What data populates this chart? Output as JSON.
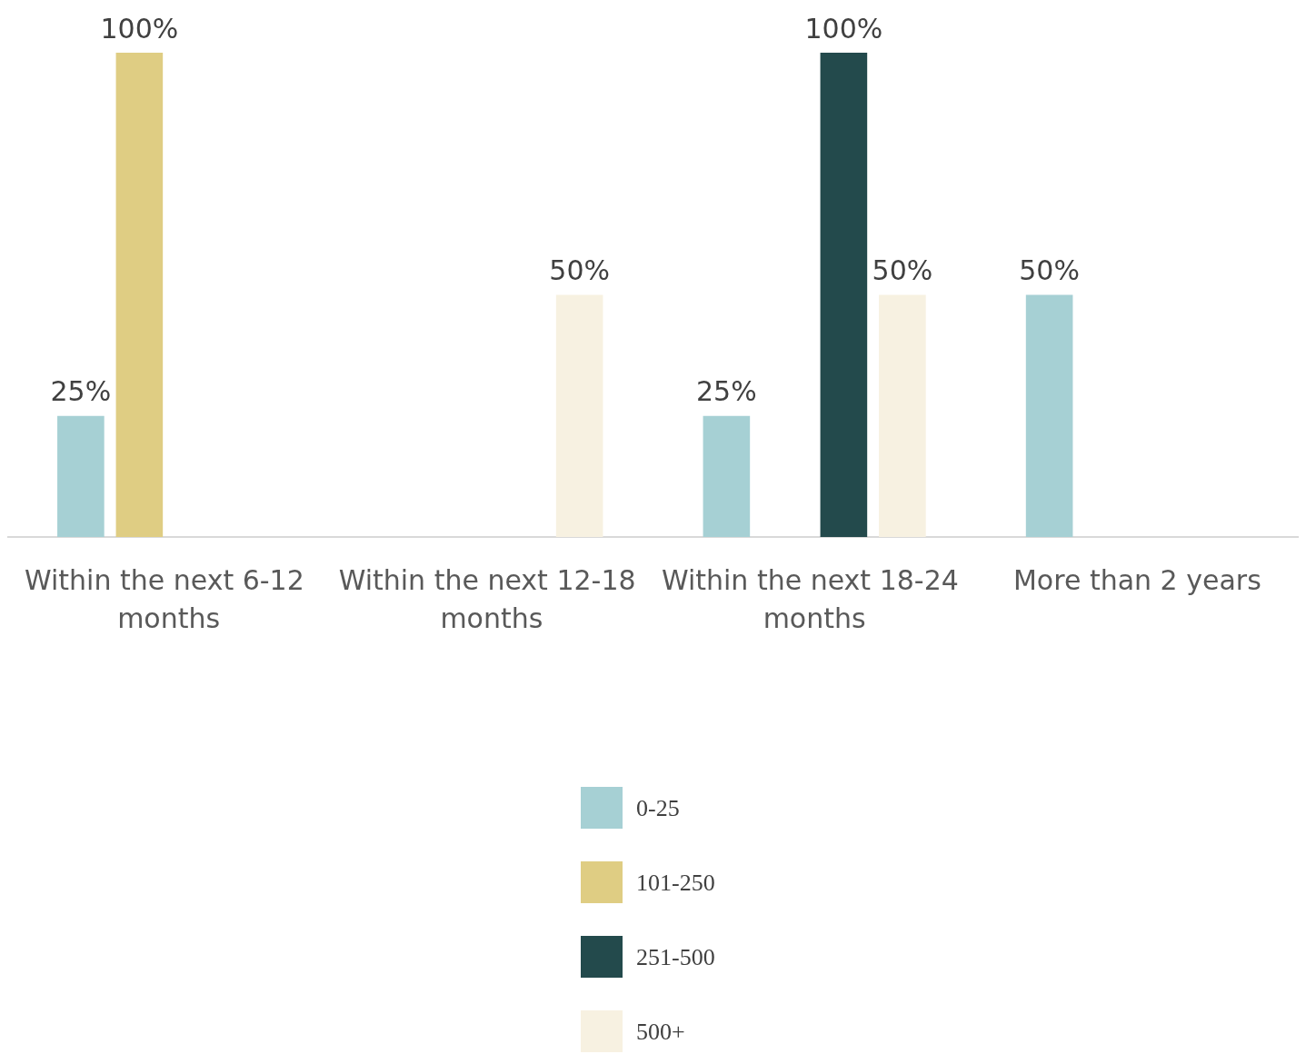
{
  "chart_data": {
    "type": "bar",
    "categories": [
      "Within the next 6-12 months",
      "Within the next 12-18 months",
      "Within the next 18-24 months",
      "More than 2 years"
    ],
    "series": [
      {
        "name": "0-25",
        "color": "#a6d0d4",
        "values": [
          25,
          null,
          25,
          50
        ],
        "value_labels": [
          "25%",
          null,
          "25%",
          "50%"
        ]
      },
      {
        "name": "101-250",
        "color": "#dfcd83",
        "values": [
          100,
          null,
          null,
          null
        ],
        "value_labels": [
          "100%",
          null,
          null,
          null
        ]
      },
      {
        "name": "251-500",
        "color": "#234a4c",
        "values": [
          null,
          null,
          100,
          null
        ],
        "value_labels": [
          null,
          null,
          "100%",
          null
        ]
      },
      {
        "name": "500+",
        "color": "#f7f1e1",
        "values": [
          null,
          50,
          50,
          null
        ],
        "value_labels": [
          null,
          "50%",
          "50%",
          null
        ]
      }
    ],
    "tick_labels": "x",
    "legend": "bottom"
  }
}
